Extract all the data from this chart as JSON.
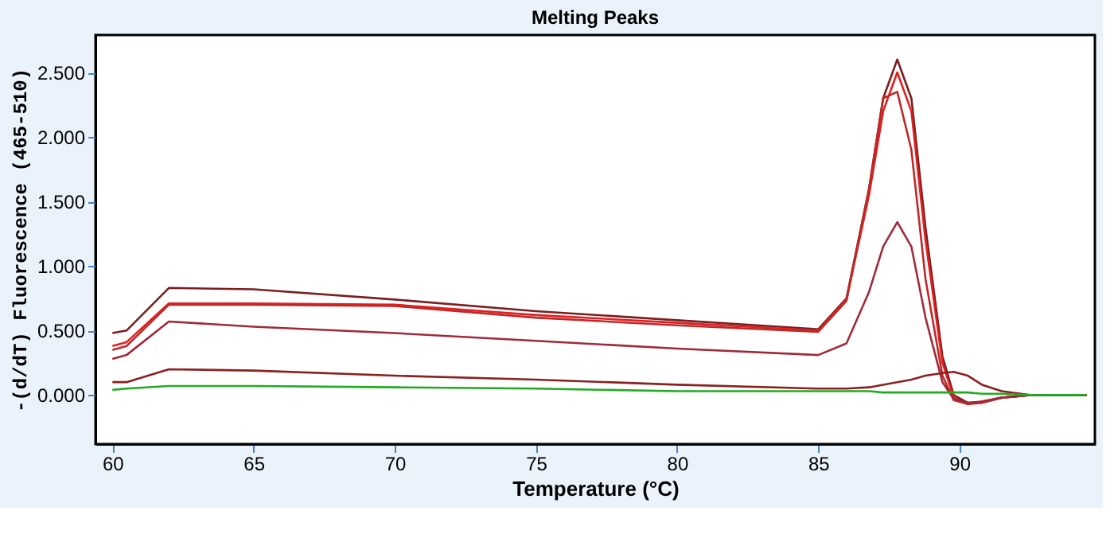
{
  "chart_data": {
    "type": "line",
    "title": "Melting Peaks",
    "xlabel": "Temperature (°C)",
    "ylabel": "-(d/dT) Fluorescence (465-510)",
    "xlim": [
      59.4,
      94.8
    ],
    "ylim": [
      -0.38,
      2.79
    ],
    "xticks": [
      60,
      65,
      70,
      75,
      80,
      85,
      90
    ],
    "yticks": [
      {
        "value": 0,
        "label": "0.000"
      },
      {
        "value": 0.5,
        "label": "0.500"
      },
      {
        "value": 1,
        "label": "1.000"
      },
      {
        "value": 1.5,
        "label": "1.500"
      },
      {
        "value": 2,
        "label": "2.000"
      },
      {
        "value": 2.5,
        "label": "2.500"
      }
    ],
    "grid": false,
    "legend": false,
    "marker": "none",
    "line_style": "solid",
    "x": [
      60,
      60.5,
      62,
      65,
      70,
      75,
      80,
      85,
      86,
      86.8,
      87.3,
      87.8,
      88.3,
      88.8,
      89.4,
      89.8,
      90.3,
      90.8,
      91.5,
      92.5,
      94.5
    ],
    "series": [
      {
        "color": "#7a1f1f",
        "values": [
          0.48,
          0.5,
          0.83,
          0.82,
          0.74,
          0.65,
          0.58,
          0.51,
          0.75,
          1.6,
          2.3,
          2.6,
          2.3,
          1.3,
          0.3,
          0.0,
          -0.06,
          -0.06,
          -0.02,
          0.0,
          0.0
        ]
      },
      {
        "color": "#e02020",
        "values": [
          0.38,
          0.41,
          0.71,
          0.71,
          0.7,
          0.62,
          0.56,
          0.5,
          0.74,
          1.55,
          2.2,
          2.5,
          2.2,
          1.2,
          0.25,
          -0.02,
          -0.07,
          -0.06,
          -0.02,
          0.0,
          0.0
        ]
      },
      {
        "color": "#c02828",
        "values": [
          0.35,
          0.38,
          0.7,
          0.7,
          0.69,
          0.6,
          0.54,
          0.49,
          0.73,
          1.6,
          2.3,
          2.35,
          1.9,
          0.9,
          0.15,
          -0.04,
          -0.07,
          -0.05,
          -0.02,
          0.0,
          0.0
        ]
      },
      {
        "color": "#a02a3a",
        "values": [
          0.28,
          0.31,
          0.57,
          0.53,
          0.48,
          0.42,
          0.36,
          0.31,
          0.4,
          0.8,
          1.15,
          1.34,
          1.15,
          0.6,
          0.1,
          -0.03,
          -0.06,
          -0.05,
          -0.02,
          0.0,
          0.0
        ]
      },
      {
        "color": "#8b2020",
        "values": [
          0.1,
          0.1,
          0.2,
          0.19,
          0.15,
          0.12,
          0.08,
          0.05,
          0.05,
          0.06,
          0.08,
          0.1,
          0.12,
          0.15,
          0.17,
          0.18,
          0.15,
          0.08,
          0.03,
          0.0,
          0.0
        ]
      },
      {
        "color": "#22aa22",
        "values": [
          0.04,
          0.05,
          0.07,
          0.07,
          0.06,
          0.05,
          0.03,
          0.03,
          0.03,
          0.03,
          0.02,
          0.02,
          0.02,
          0.02,
          0.02,
          0.02,
          0.02,
          0.01,
          0.01,
          0.0,
          0.0
        ]
      }
    ]
  }
}
